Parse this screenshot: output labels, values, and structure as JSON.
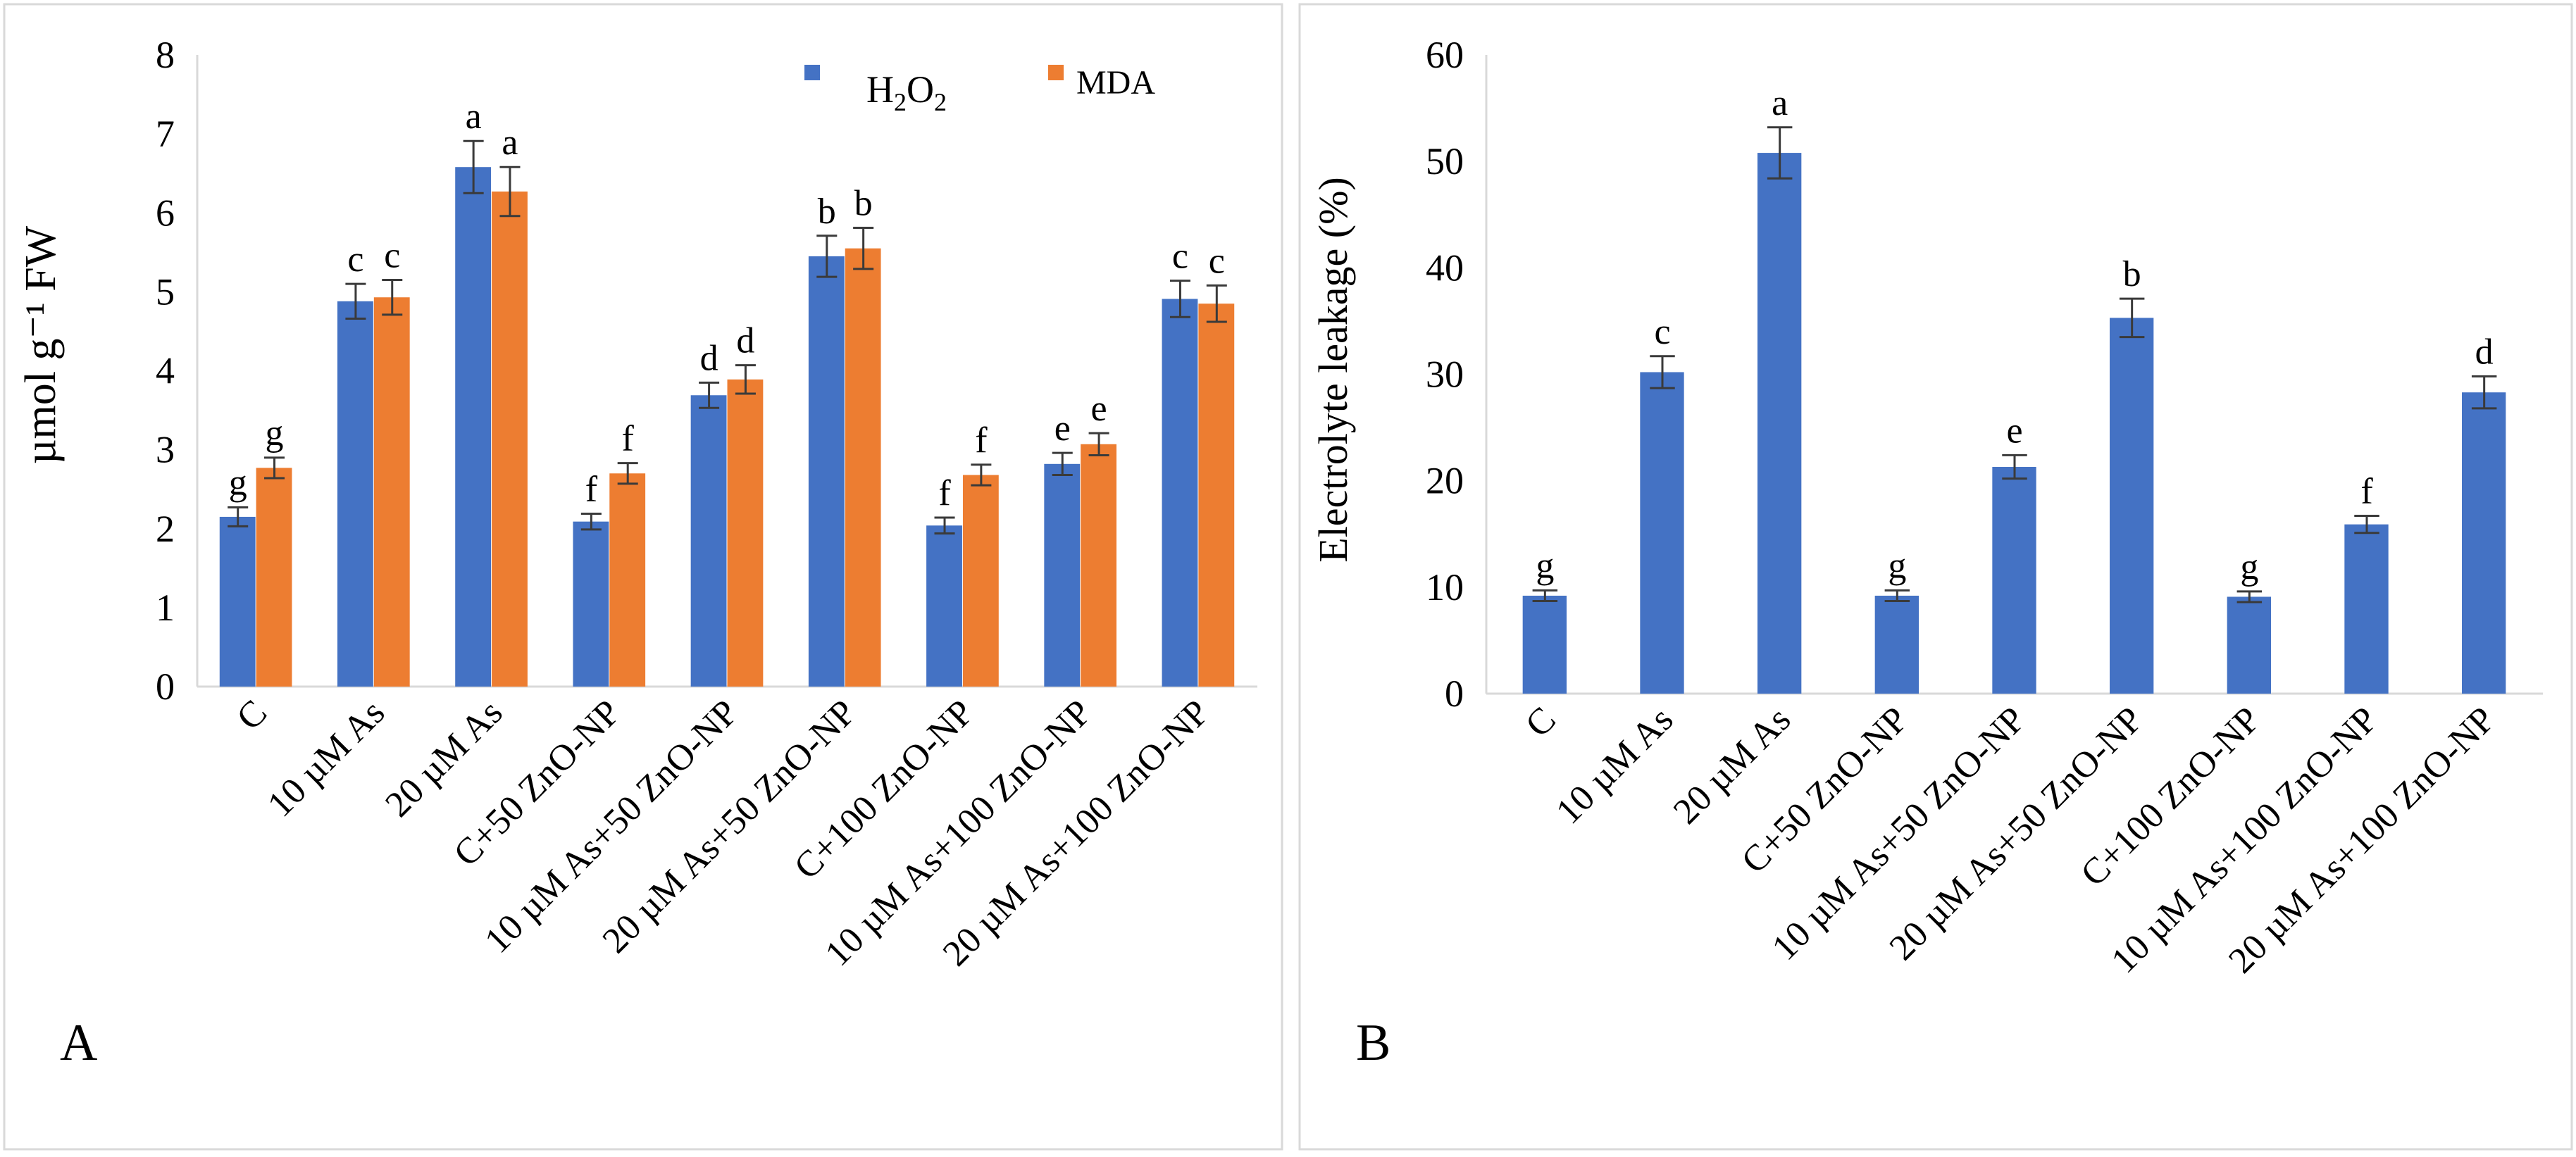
{
  "chart_data": [
    {
      "panel_label": "A",
      "type": "bar",
      "title": "",
      "xlabel": "",
      "ylabel": "µmol g⁻¹ FW",
      "ylim": [
        0,
        8
      ],
      "yticks": [
        0,
        1,
        2,
        3,
        4,
        5,
        6,
        7,
        8
      ],
      "grid": false,
      "legend_position": "top-right",
      "categories": [
        "C",
        "10 µM As",
        "20 µM As",
        "C+50 ZnO-NP",
        "10 µM As+50 ZnO-NP",
        "20 µM As+50 ZnO-NP",
        "C+100 ZnO-NP",
        "10 µM As+100 ZnO-NP",
        "20 µM As+100 ZnO-NP"
      ],
      "series": [
        {
          "name": "H2O2",
          "color": "#4472C4",
          "values": [
            2.15,
            4.88,
            6.58,
            2.09,
            3.69,
            5.45,
            2.04,
            2.82,
            4.91
          ],
          "errors": [
            0.12,
            0.22,
            0.33,
            0.1,
            0.16,
            0.26,
            0.1,
            0.14,
            0.23
          ],
          "letters": [
            "g",
            "c",
            "a",
            "f",
            "d",
            "b",
            "f",
            "e",
            "c"
          ]
        },
        {
          "name": "MDA",
          "color": "#ED7D31",
          "values": [
            2.77,
            4.93,
            6.27,
            2.7,
            3.89,
            5.55,
            2.68,
            3.07,
            4.85
          ],
          "errors": [
            0.13,
            0.22,
            0.31,
            0.13,
            0.18,
            0.26,
            0.13,
            0.14,
            0.23
          ],
          "letters": [
            "g",
            "c",
            "a",
            "f",
            "d",
            "b",
            "f",
            "e",
            "c"
          ]
        }
      ]
    },
    {
      "panel_label": "B",
      "type": "bar",
      "title": "",
      "xlabel": "",
      "ylabel": "Electrolyte leakage (%)",
      "ylim": [
        0,
        60
      ],
      "yticks": [
        0,
        10,
        20,
        30,
        40,
        50,
        60
      ],
      "grid": false,
      "categories": [
        "C",
        "10 µM As",
        "20 µM As",
        "C+50 ZnO-NP",
        "10 µM As+50 ZnO-NP",
        "20 µM As+50 ZnO-NP",
        "C+100 ZnO-NP",
        "10 µM As+100 ZnO-NP",
        "20 µM As+100 ZnO-NP"
      ],
      "series": [
        {
          "name": "Electrolyte leakage",
          "color": "#4472C4",
          "values": [
            9.2,
            30.2,
            50.8,
            9.2,
            21.3,
            35.3,
            9.1,
            15.9,
            28.3
          ],
          "errors": [
            0.5,
            1.5,
            2.4,
            0.5,
            1.1,
            1.8,
            0.5,
            0.8,
            1.5
          ],
          "letters": [
            "g",
            "c",
            "a",
            "g",
            "e",
            "b",
            "g",
            "f",
            "d"
          ]
        }
      ]
    }
  ]
}
